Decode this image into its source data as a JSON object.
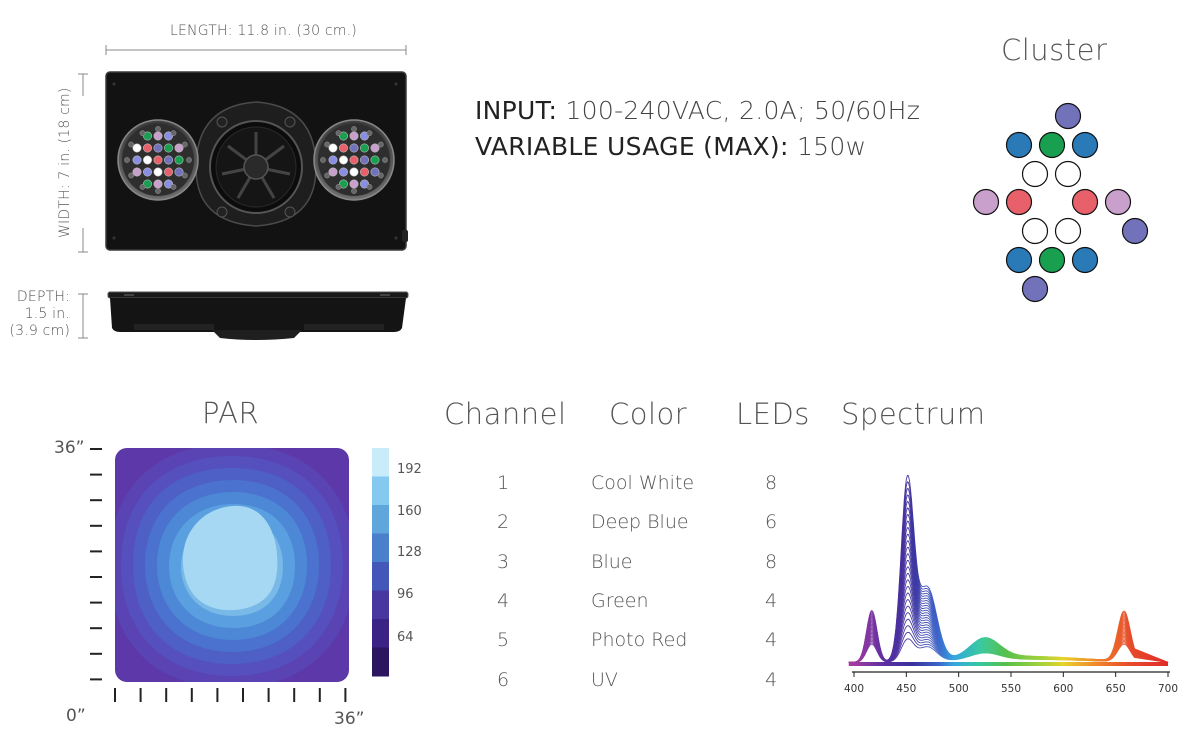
{
  "dimensions": {
    "length": "LENGTH: 11.8 in. (30 cm.)",
    "width": "WIDTH: 7 in. (18 cm)",
    "depth_line1": "DEPTH:",
    "depth_line2": "1.5 in.",
    "depth_line3": "(3.9 cm)"
  },
  "specs": {
    "input_label": "INPUT:",
    "input_value": "100-240VAC, 2.0A; 50/60Hz",
    "usage_label": "VARIABLE USAGE (MAX):",
    "usage_value": "150w"
  },
  "cluster": {
    "title": "Cluster",
    "leds": [
      {
        "color": "#7272bb"
      },
      {
        "color": "#2a7ab8"
      },
      {
        "color": "#18a050"
      },
      {
        "color": "#2a7ab8"
      },
      {
        "color": "#ffffff"
      },
      {
        "color": "#ffffff"
      },
      {
        "color": "#c9a0cc"
      },
      {
        "color": "#e8616a"
      },
      {
        "color": "#e8616a"
      },
      {
        "color": "#c9a0cc"
      },
      {
        "color": "#ffffff"
      },
      {
        "color": "#ffffff"
      },
      {
        "color": "#7272bb"
      },
      {
        "color": "#2a7ab8"
      },
      {
        "color": "#18a050"
      },
      {
        "color": "#2a7ab8"
      },
      {
        "color": "#7272bb"
      }
    ]
  },
  "par": {
    "title": "PAR",
    "y_max_label": "36”",
    "x_min_label": "0”",
    "x_max_label": "36”",
    "scale_ticks": [
      "192",
      "160",
      "128",
      "96",
      "64"
    ],
    "scale_colors": [
      "#c8ecfa",
      "#85c9ee",
      "#5ea6dc",
      "#4a7fcc",
      "#4357b8",
      "#47379f",
      "#3b2285",
      "#2c1660"
    ]
  },
  "channels": {
    "headers": {
      "channel": "Channel",
      "color": "Color",
      "leds": "LEDs",
      "spectrum": "Spectrum"
    },
    "rows": [
      {
        "channel": "1",
        "color": "Cool White",
        "leds": "8"
      },
      {
        "channel": "2",
        "color": "Deep Blue",
        "leds": "6"
      },
      {
        "channel": "3",
        "color": "Blue",
        "leds": "8"
      },
      {
        "channel": "4",
        "color": "Green",
        "leds": "4"
      },
      {
        "channel": "5",
        "color": "Photo Red",
        "leds": "4"
      },
      {
        "channel": "6",
        "color": "UV",
        "leds": "4"
      }
    ]
  },
  "chart_data": {
    "type": "area",
    "title": "Spectrum",
    "xlabel": "",
    "ylabel": "",
    "x_ticks": [
      "400",
      "450",
      "500",
      "550",
      "600",
      "650",
      "700"
    ],
    "xlim": [
      395,
      700
    ],
    "peaks": [
      {
        "wavelength": 417,
        "relative_height": 0.29
      },
      {
        "wavelength": 451,
        "relative_height": 1.0
      },
      {
        "wavelength": 470,
        "relative_height": 0.41
      },
      {
        "wavelength": 525,
        "relative_height": 0.11
      },
      {
        "wavelength": 658,
        "relative_height": 0.28
      }
    ],
    "curve_count": 26,
    "color_stops": [
      {
        "wavelength": 400,
        "color": "#a23aa0"
      },
      {
        "wavelength": 430,
        "color": "#5a2fa0"
      },
      {
        "wavelength": 455,
        "color": "#3a2f9c"
      },
      {
        "wavelength": 480,
        "color": "#3b62c8"
      },
      {
        "wavelength": 495,
        "color": "#36a6e0"
      },
      {
        "wavelength": 520,
        "color": "#34c8a0"
      },
      {
        "wavelength": 545,
        "color": "#55c04a"
      },
      {
        "wavelength": 580,
        "color": "#a8d23a"
      },
      {
        "wavelength": 600,
        "color": "#e6d22a"
      },
      {
        "wavelength": 630,
        "color": "#f08a2a"
      },
      {
        "wavelength": 660,
        "color": "#e8502a"
      },
      {
        "wavelength": 700,
        "color": "#e02a2a"
      }
    ]
  }
}
